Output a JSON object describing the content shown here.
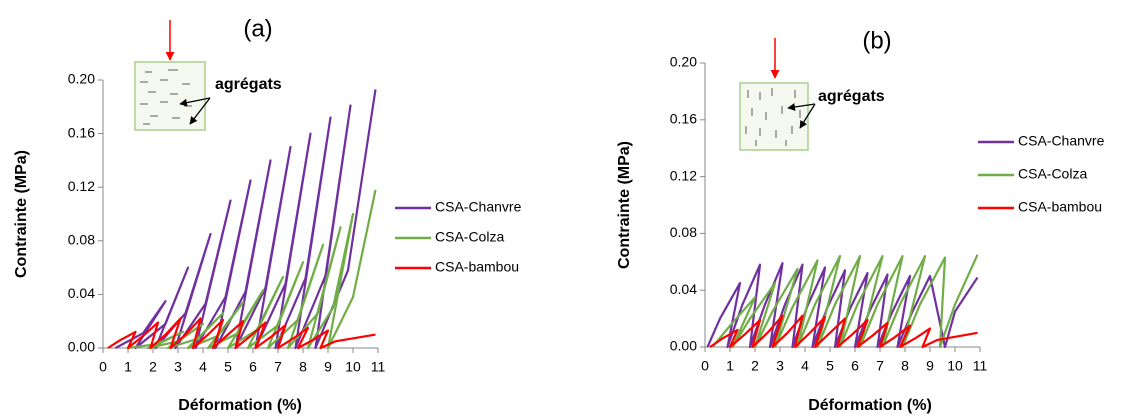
{
  "chart_data": [
    {
      "type": "line",
      "label": "(a)",
      "inset_label": "agrégats",
      "xlabel": "Déformation (%)",
      "ylabel": "Contrainte (MPa)",
      "xlim": [
        0,
        11
      ],
      "xticks": [
        0,
        1,
        2,
        3,
        4,
        5,
        6,
        7,
        8,
        9,
        10,
        11
      ],
      "ylim": [
        0,
        0.2
      ],
      "yticks": [
        {
          "value": 0,
          "label": "0.00"
        },
        {
          "value": 0.04,
          "label": "0.04"
        },
        {
          "value": 0.08,
          "label": "0.08"
        },
        {
          "value": 0.12,
          "label": "0.12"
        },
        {
          "value": 0.16,
          "label": "0.16"
        },
        {
          "value": 0.2,
          "label": "0.20"
        }
      ],
      "series": [
        {
          "name": "CSA-Chanvre",
          "color": "#7030a0",
          "x": [
            0.5,
            1.6,
            2.5,
            1.3,
            2.5,
            3.4,
            2.1,
            3.3,
            4.3,
            2.9,
            4.1,
            5.1,
            3.7,
            4.9,
            5.9,
            4.5,
            5.7,
            6.7,
            5.3,
            6.5,
            7.5,
            6.1,
            7.3,
            8.3,
            6.9,
            8.1,
            9.1,
            7.7,
            8.9,
            9.9,
            8.5,
            9.8,
            10.9
          ],
          "values": [
            0,
            0.011,
            0.035,
            0,
            0.018,
            0.06,
            0,
            0.026,
            0.085,
            0,
            0.033,
            0.11,
            0,
            0.038,
            0.125,
            0,
            0.042,
            0.14,
            0,
            0.045,
            0.15,
            0,
            0.048,
            0.16,
            0,
            0.052,
            0.172,
            0,
            0.054,
            0.181,
            0,
            0.058,
            0.193
          ]
        },
        {
          "name": "CSA-Colza",
          "color": "#70ad47",
          "x": [
            1.0,
            2.2,
            3.2,
            1.8,
            3.0,
            4.0,
            2.6,
            3.8,
            4.8,
            3.4,
            4.6,
            5.6,
            4.2,
            5.4,
            6.4,
            5.0,
            6.2,
            7.2,
            5.8,
            7.0,
            8.0,
            6.6,
            7.8,
            8.8,
            7.4,
            8.6,
            9.5,
            8.2,
            9.2,
            10.0,
            9.0,
            10.0,
            10.9
          ],
          "values": [
            0,
            0.003,
            0.012,
            0,
            0.005,
            0.018,
            0,
            0.007,
            0.026,
            0,
            0.009,
            0.034,
            0,
            0.011,
            0.043,
            0,
            0.014,
            0.053,
            0,
            0.017,
            0.064,
            0,
            0.021,
            0.077,
            0,
            0.026,
            0.09,
            0,
            0.03,
            0.1,
            0,
            0.038,
            0.118
          ]
        },
        {
          "name": "CSA-bambou",
          "color": "#ff0000",
          "x": [
            0.2,
            0.7,
            1.3,
            1.0,
            1.6,
            2.2,
            1.9,
            2.5,
            3.1,
            2.7,
            3.3,
            3.9,
            3.6,
            4.2,
            4.8,
            4.4,
            5.0,
            5.6,
            5.3,
            5.9,
            6.5,
            6.1,
            6.7,
            7.3,
            7.0,
            7.6,
            8.2,
            7.8,
            8.4,
            9.0,
            8.7,
            9.3,
            10.9
          ],
          "values": [
            0,
            0.006,
            0.012,
            0,
            0.009,
            0.019,
            0,
            0.01,
            0.022,
            0,
            0.01,
            0.022,
            0,
            0.01,
            0.021,
            0,
            0.01,
            0.02,
            0,
            0.009,
            0.019,
            0,
            0.008,
            0.017,
            0,
            0.007,
            0.015,
            0,
            0.006,
            0.013,
            0,
            0.005,
            0.01
          ]
        }
      ]
    },
    {
      "type": "line",
      "label": "(b)",
      "inset_label": "agrégats",
      "xlabel": "Déformation (%)",
      "ylabel": "Contrainte (MPa)",
      "xlim": [
        0,
        11
      ],
      "xticks": [
        0,
        1,
        2,
        3,
        4,
        5,
        6,
        7,
        8,
        9,
        10,
        11
      ],
      "ylim": [
        0,
        0.2
      ],
      "yticks": [
        {
          "value": 0,
          "label": "0.00"
        },
        {
          "value": 0.04,
          "label": "0.04"
        },
        {
          "value": 0.08,
          "label": "0.08"
        },
        {
          "value": 0.12,
          "label": "0.12"
        },
        {
          "value": 0.16,
          "label": "0.16"
        },
        {
          "value": 0.2,
          "label": "0.20"
        }
      ],
      "series": [
        {
          "name": "CSA-Chanvre",
          "color": "#7030a0",
          "x": [
            0.1,
            0.6,
            1.4,
            0.9,
            1.5,
            2.2,
            1.8,
            2.4,
            3.1,
            2.6,
            3.2,
            3.9,
            3.5,
            4.1,
            4.8,
            4.3,
            4.9,
            5.6,
            5.2,
            5.8,
            6.5,
            6.0,
            6.6,
            7.3,
            6.9,
            7.5,
            8.2,
            7.7,
            8.3,
            9.0,
            9.6,
            10.0,
            10.9
          ],
          "values": [
            0,
            0.02,
            0.045,
            0,
            0.03,
            0.058,
            0,
            0.03,
            0.059,
            0,
            0.03,
            0.058,
            0,
            0.029,
            0.056,
            0,
            0.028,
            0.054,
            0,
            0.027,
            0.052,
            0,
            0.026,
            0.051,
            0,
            0.025,
            0.05,
            0,
            0.025,
            0.05,
            0,
            0.025,
            0.049
          ]
        },
        {
          "name": "CSA-Colza",
          "color": "#70ad47",
          "x": [
            0.3,
            1.0,
            2.0,
            1.1,
            1.8,
            2.8,
            2.0,
            2.7,
            3.7,
            2.8,
            3.5,
            4.5,
            3.7,
            4.4,
            5.4,
            4.5,
            5.2,
            6.2,
            5.4,
            6.1,
            7.1,
            6.2,
            6.9,
            7.9,
            7.1,
            7.8,
            8.8,
            7.9,
            8.6,
            9.6,
            9.4,
            10.0,
            10.9
          ],
          "values": [
            0,
            0.015,
            0.035,
            0,
            0.02,
            0.045,
            0,
            0.025,
            0.055,
            0,
            0.028,
            0.061,
            0,
            0.03,
            0.064,
            0,
            0.03,
            0.064,
            0,
            0.03,
            0.064,
            0,
            0.03,
            0.064,
            0,
            0.03,
            0.064,
            0,
            0.03,
            0.063,
            0,
            0.03,
            0.065
          ]
        },
        {
          "name": "CSA-bambou",
          "color": "#ff0000",
          "x": [
            0.2,
            0.7,
            1.3,
            1.0,
            1.6,
            2.2,
            1.9,
            2.5,
            3.1,
            2.7,
            3.3,
            3.9,
            3.6,
            4.2,
            4.8,
            4.4,
            5.0,
            5.6,
            5.3,
            5.9,
            6.5,
            6.1,
            6.7,
            7.3,
            7.0,
            7.6,
            8.2,
            7.8,
            8.4,
            9.0,
            8.7,
            9.3,
            10.9
          ],
          "values": [
            0,
            0.006,
            0.012,
            0,
            0.009,
            0.019,
            0,
            0.01,
            0.022,
            0,
            0.01,
            0.022,
            0,
            0.01,
            0.021,
            0,
            0.01,
            0.02,
            0,
            0.009,
            0.019,
            0,
            0.008,
            0.017,
            0,
            0.007,
            0.015,
            0,
            0.006,
            0.013,
            0,
            0.005,
            0.01
          ]
        }
      ]
    }
  ]
}
